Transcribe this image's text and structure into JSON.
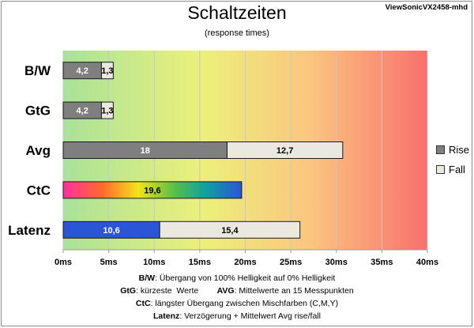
{
  "chart_data": {
    "type": "bar",
    "orientation": "horizontal",
    "stacked": true,
    "title": "Schaltzeiten",
    "subtitle": "(response times)",
    "model": "ViewSonicVX2458-mhd",
    "categories": [
      "B/W",
      "GtG",
      "Avg",
      "CtC",
      "Latenz"
    ],
    "series": [
      {
        "name": "Rise",
        "color": "#7f7f7f",
        "values": [
          4.2,
          4.2,
          18,
          19.6,
          10.6
        ],
        "labels": [
          "4,2",
          "4,2",
          "18",
          "19,6",
          "10,6"
        ]
      },
      {
        "name": "Fall",
        "color": "#ebe8df",
        "values": [
          1.3,
          1.3,
          12.7,
          null,
          15.4
        ],
        "labels": [
          "1,3",
          "1,3",
          "12,7",
          "",
          "15,4"
        ]
      }
    ],
    "bar_fills": [
      [
        "#7f7f7f",
        "#ebe8df"
      ],
      [
        "#7f7f7f",
        "#ebe8df"
      ],
      [
        "#7f7f7f",
        "#ebe8df"
      ],
      [
        "ctc-gradient",
        null
      ],
      [
        "#2a55d6",
        "#ebe8df"
      ]
    ],
    "xlim": [
      0,
      40
    ],
    "xticks": [
      0,
      5,
      10,
      15,
      20,
      25,
      30,
      35,
      40
    ],
    "xtick_labels": [
      "0ms",
      "5ms",
      "10ms",
      "15ms",
      "20ms",
      "25ms",
      "30ms",
      "35ms",
      "40ms"
    ],
    "grid": true,
    "legend_position": "right",
    "background_gradient": [
      "#a8e29a",
      "#ecf07a",
      "#fbc580",
      "#f8706d"
    ]
  },
  "notes": [
    {
      "parts": [
        {
          "b": "B/W"
        },
        {
          "t": ":  Übergang von 100% Helligkeit auf 0% Helligkeit"
        }
      ]
    },
    {
      "parts": [
        {
          "b": "GtG"
        },
        {
          "t": ": kürzeste  Werte        "
        },
        {
          "b": "AVG"
        },
        {
          "t": ": Mittelwerte  an 15 Messpunkten"
        }
      ]
    },
    {
      "parts": [
        {
          "b": "CtC"
        },
        {
          "t": ": längster Übergang  zwischen Mischfarben  (C,M,Y)"
        }
      ]
    },
    {
      "parts": [
        {
          "b": "Latenz"
        },
        {
          "t": ": Verzögerung  + Mittelwert  Avg rise/fall"
        }
      ]
    }
  ]
}
